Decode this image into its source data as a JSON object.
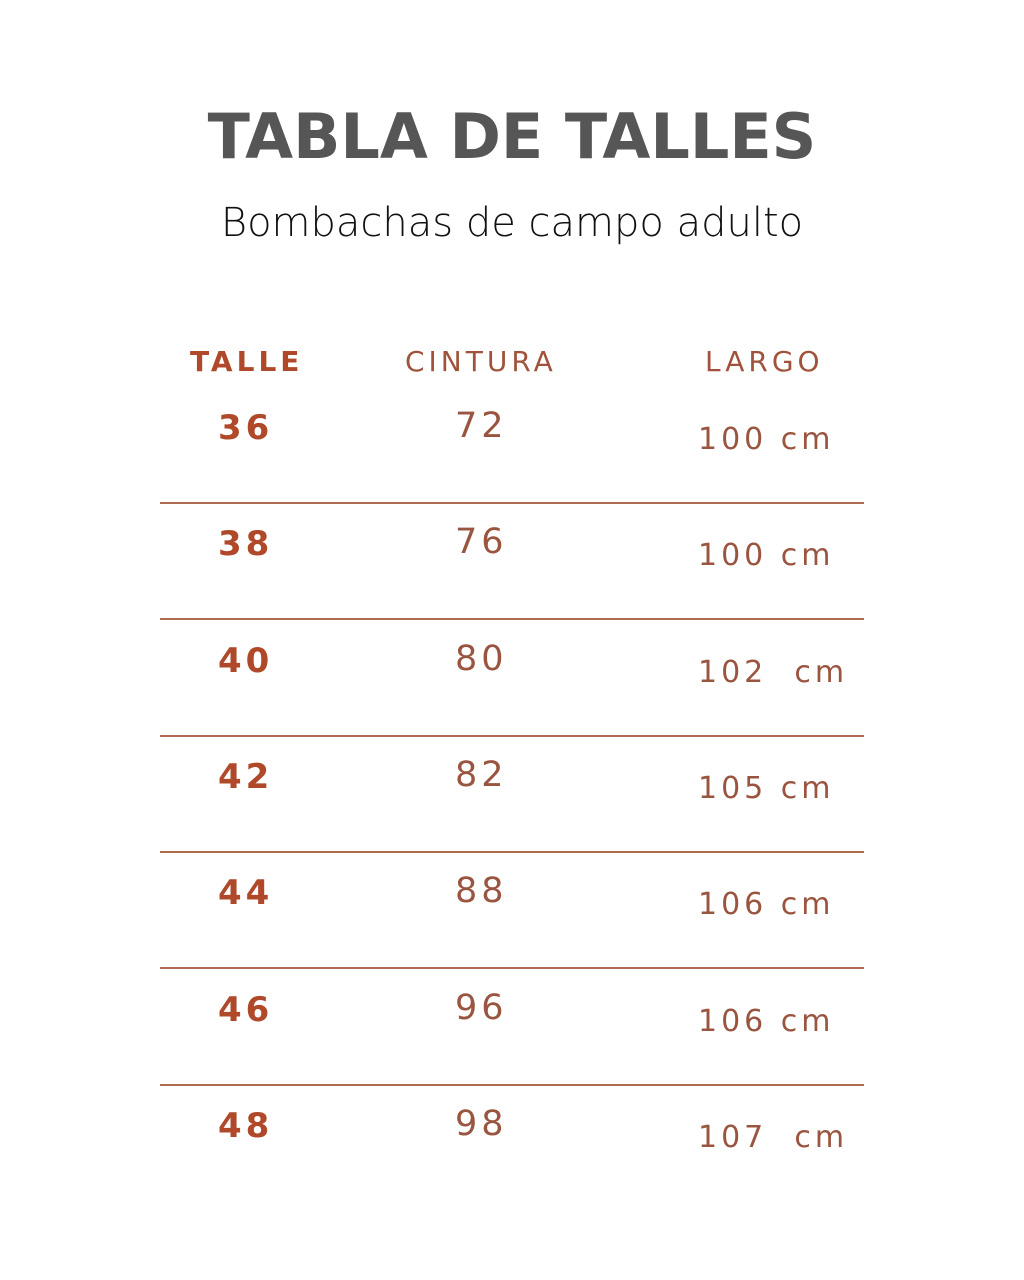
{
  "title": "TABLA DE TALLES",
  "subtitle": "Bombachas de campo adulto",
  "colors": {
    "accent": "#b0482a",
    "text_light": "#9a5540",
    "title": "#565656",
    "divider": "#b06a50"
  },
  "table": {
    "headers": [
      "TALLE",
      "CINTURA",
      "LARGO"
    ],
    "rows": [
      {
        "talle": "36",
        "cintura": "72",
        "largo": "100 cm"
      },
      {
        "talle": "38",
        "cintura": "76",
        "largo": "100 cm"
      },
      {
        "talle": "40",
        "cintura": "80",
        "largo": "102  cm"
      },
      {
        "talle": "42",
        "cintura": "82",
        "largo": "105 cm"
      },
      {
        "talle": "44",
        "cintura": "88",
        "largo": "106 cm"
      },
      {
        "talle": "46",
        "cintura": "96",
        "largo": "106 cm"
      },
      {
        "talle": "48",
        "cintura": "98",
        "largo": "107  cm"
      }
    ]
  }
}
